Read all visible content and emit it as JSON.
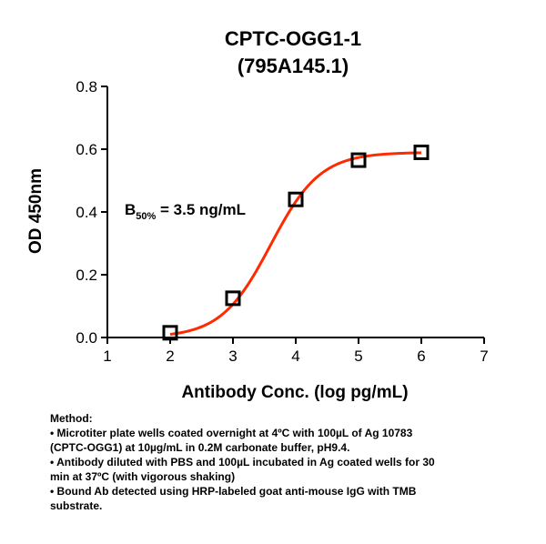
{
  "chart_data": {
    "type": "scatter",
    "title_lines": [
      "CPTC-OGG1-1",
      "(795A145.1)"
    ],
    "xlabel": "Antibody Conc. (log pg/mL)",
    "ylabel": "OD 450nm",
    "xlim": [
      1,
      7
    ],
    "ylim": [
      0.0,
      0.8
    ],
    "x_ticks": [
      1,
      2,
      3,
      4,
      5,
      6,
      7
    ],
    "y_ticks": [
      0.0,
      0.2,
      0.4,
      0.6,
      0.8
    ],
    "x_tick_labels": [
      "1",
      "2",
      "3",
      "4",
      "5",
      "6",
      "7"
    ],
    "y_tick_labels": [
      "0.0",
      "0.2",
      "0.4",
      "0.6",
      "0.8"
    ],
    "points": [
      {
        "x": 2,
        "y": 0.015
      },
      {
        "x": 3,
        "y": 0.125
      },
      {
        "x": 4,
        "y": 0.44
      },
      {
        "x": 5,
        "y": 0.565
      },
      {
        "x": 6,
        "y": 0.59
      }
    ],
    "fit_curve": {
      "bottom": 0.0,
      "top": 0.59,
      "log_ec50": 3.6,
      "hill_slope": 1.1,
      "x_range": [
        2,
        6
      ],
      "color": "#ff2a00"
    },
    "marker_color": "#000000",
    "annotation": {
      "main": "B",
      "subscript": "50%",
      "rest": " = 3.5 ng/mL"
    },
    "grid": false
  },
  "method": {
    "heading": "Method:",
    "lines": [
      "• Microtiter plate wells coated overnight at 4ºC  with 100µL of Ag 10783",
      "(CPTC-OGG1) at 10µg/mL in 0.2M carbonate buffer, pH9.4.",
      "• Antibody diluted with PBS and 100µL incubated in Ag coated wells for 30",
      "min at 37ºC (with vigorous shaking)",
      "• Bound Ab detected using HRP-labeled goat anti-mouse IgG with TMB",
      "substrate."
    ]
  }
}
